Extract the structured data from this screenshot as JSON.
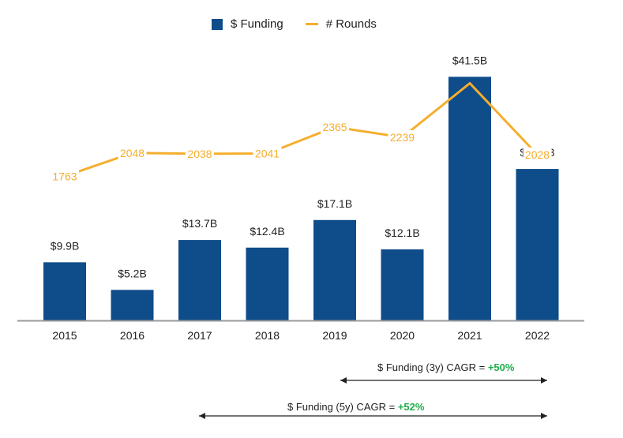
{
  "legend": {
    "bar_label": "$ Funding",
    "line_label": "# Rounds"
  },
  "colors": {
    "bar": "#0f4c8a",
    "line": "#f5ae2d",
    "axis": "#9a9a9a",
    "cagr_value": "#1fae4b",
    "arrow": "#222222"
  },
  "chart_data": {
    "type": "bar",
    "categories": [
      "2015",
      "2016",
      "2017",
      "2018",
      "2019",
      "2020",
      "2021",
      "2022"
    ],
    "series": [
      {
        "name": "$ Funding",
        "type": "bar",
        "values": [
          9.9,
          5.2,
          13.7,
          12.4,
          17.1,
          12.1,
          41.5,
          25.8
        ],
        "labels": [
          "$9.9B",
          "$5.2B",
          "$13.7B",
          "$12.4B",
          "$17.1B",
          "$12.1B",
          "$41.5B",
          "$25.8B"
        ]
      },
      {
        "name": "# Rounds",
        "type": "line",
        "values": [
          1763,
          2048,
          2038,
          2041,
          2365,
          2239,
          2900,
          2028
        ],
        "labels": [
          "1763",
          "2048",
          "2038",
          "2041",
          "2365",
          "2239",
          "",
          "2028"
        ]
      }
    ],
    "ylim_bar": [
      0,
      42
    ],
    "ylim_line": [
      0,
      3000
    ],
    "legend_position": "top-center",
    "grid": false
  },
  "annotations": {
    "cagr_3y": {
      "label": "$ Funding (3y) CAGR = ",
      "value": "+50%"
    },
    "cagr_5y": {
      "label": "$ Funding (5y) CAGR = ",
      "value": "+52%"
    }
  }
}
